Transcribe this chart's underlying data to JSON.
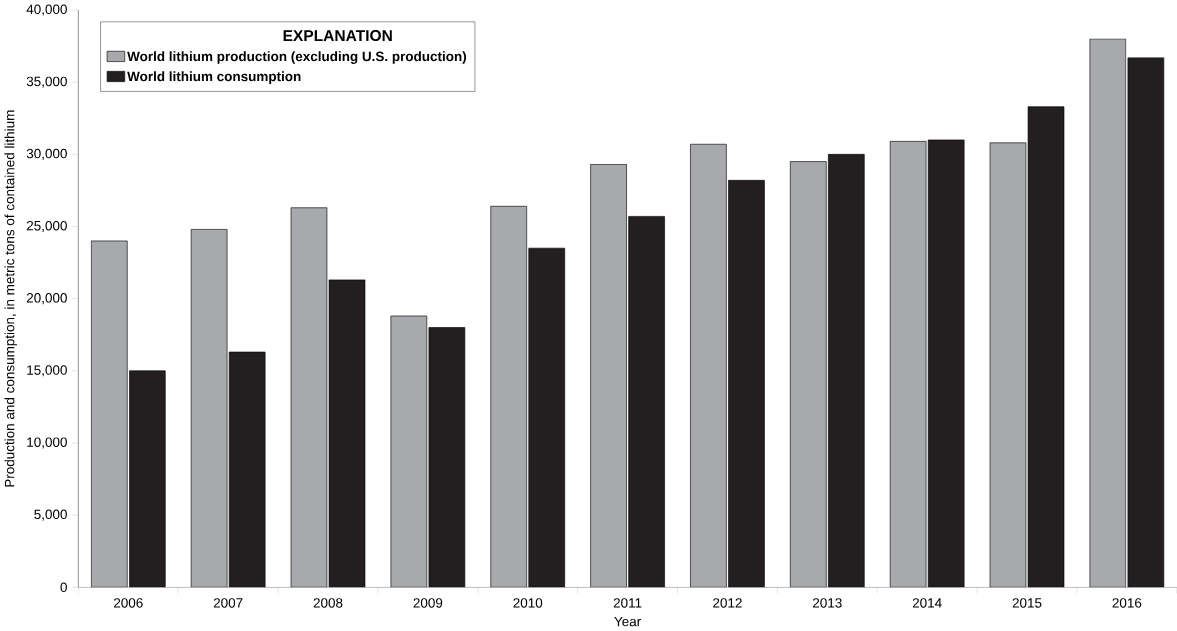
{
  "chart_data": {
    "type": "bar",
    "xlabel": "Year",
    "ylabel": "Production and consumption, in metric tons of contained lithium",
    "legend_title": "EXPLANATION",
    "legend": "top left",
    "grid": false,
    "categories": [
      "2006",
      "2007",
      "2008",
      "2009",
      "2010",
      "2011",
      "2012",
      "2013",
      "2014",
      "2015",
      "2016"
    ],
    "ylim": [
      0,
      40000
    ],
    "yticks": [
      {
        "value": 0,
        "label": "0"
      },
      {
        "value": 5000,
        "label": "5,000"
      },
      {
        "value": 10000,
        "label": "10,000"
      },
      {
        "value": 15000,
        "label": "15,000"
      },
      {
        "value": 20000,
        "label": "20,000"
      },
      {
        "value": 25000,
        "label": "25,000"
      },
      {
        "value": 30000,
        "label": "30,000"
      },
      {
        "value": 35000,
        "label": "35,000"
      },
      {
        "value": 40000,
        "label": "40,000"
      }
    ],
    "series": [
      {
        "name": "World lithium production (excluding U.S. production)",
        "color": "#a7a9ac",
        "values": [
          24000,
          24800,
          26300,
          18800,
          26400,
          29300,
          30700,
          29500,
          30900,
          30800,
          38000
        ]
      },
      {
        "name": "World lithium consumption",
        "color": "#231f20",
        "values": [
          15000,
          16300,
          21300,
          18000,
          23500,
          25700,
          28200,
          30000,
          31000,
          33300,
          36700
        ]
      }
    ]
  }
}
